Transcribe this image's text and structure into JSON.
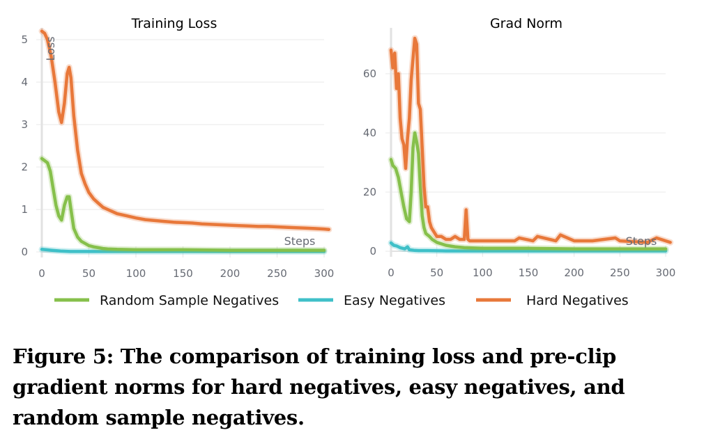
{
  "figure": {
    "caption": "Figure 5: The comparison of training loss and pre-clip gradient norms for hard negatives, easy negatives, and random sample negatives."
  },
  "legend": [
    {
      "label": "Random Sample Negatives",
      "color": "#86c04b"
    },
    {
      "label": "Easy Negatives",
      "color": "#3fc0c8"
    },
    {
      "label": "Hard Negatives",
      "color": "#e8783a"
    }
  ],
  "chart_data": [
    {
      "type": "line",
      "title": "Training Loss",
      "xlabel": "Steps",
      "ylabel": "Loss",
      "xlim": [
        0,
        305
      ],
      "ylim": [
        0,
        5.3
      ],
      "xticks": [
        0,
        50,
        100,
        150,
        200,
        250,
        300
      ],
      "yticks": [
        0,
        1,
        2,
        3,
        4,
        5
      ],
      "grid": true,
      "legend_position": "bottom",
      "series": [
        {
          "name": "Hard Negatives",
          "color": "#e8783a",
          "x": [
            0,
            3,
            6,
            10,
            14,
            18,
            21,
            24,
            27,
            29,
            31,
            34,
            38,
            42,
            46,
            50,
            55,
            60,
            65,
            70,
            80,
            90,
            100,
            110,
            120,
            130,
            140,
            150,
            160,
            170,
            180,
            190,
            200,
            210,
            220,
            230,
            240,
            250,
            260,
            270,
            280,
            290,
            300,
            305
          ],
          "values": [
            5.2,
            5.15,
            5.0,
            4.6,
            4.0,
            3.3,
            3.05,
            3.5,
            4.2,
            4.35,
            4.1,
            3.2,
            2.4,
            1.85,
            1.6,
            1.4,
            1.25,
            1.15,
            1.05,
            1.0,
            0.9,
            0.85,
            0.8,
            0.76,
            0.74,
            0.72,
            0.7,
            0.69,
            0.68,
            0.66,
            0.65,
            0.64,
            0.63,
            0.62,
            0.61,
            0.6,
            0.6,
            0.59,
            0.58,
            0.57,
            0.56,
            0.55,
            0.54,
            0.53
          ]
        },
        {
          "name": "Random Sample Negatives",
          "color": "#86c04b",
          "x": [
            0,
            3,
            6,
            9,
            12,
            15,
            18,
            21,
            24,
            27,
            29,
            31,
            34,
            38,
            42,
            46,
            50,
            55,
            60,
            65,
            70,
            80,
            100,
            150,
            200,
            250,
            300
          ],
          "values": [
            2.2,
            2.15,
            2.1,
            1.9,
            1.5,
            1.1,
            0.85,
            0.75,
            1.1,
            1.3,
            1.3,
            1.0,
            0.55,
            0.35,
            0.25,
            0.2,
            0.15,
            0.12,
            0.1,
            0.08,
            0.07,
            0.06,
            0.05,
            0.05,
            0.04,
            0.04,
            0.04
          ]
        },
        {
          "name": "Easy Negatives",
          "color": "#3fc0c8",
          "x": [
            0,
            5,
            10,
            20,
            30,
            50,
            100,
            200,
            300
          ],
          "values": [
            0.06,
            0.05,
            0.04,
            0.02,
            0.01,
            0.01,
            0.01,
            0.01,
            0.01
          ]
        }
      ]
    },
    {
      "type": "line",
      "title": "Grad Norm",
      "xlabel": "Steps",
      "ylabel": "",
      "xlim": [
        0,
        305
      ],
      "ylim": [
        0,
        76
      ],
      "xticks": [
        0,
        50,
        100,
        150,
        200,
        250,
        300
      ],
      "yticks": [
        0,
        20,
        40,
        60
      ],
      "grid": true,
      "legend_position": "bottom",
      "series": [
        {
          "name": "Hard Negatives",
          "color": "#e8783a",
          "x": [
            0,
            2,
            4,
            6,
            8,
            10,
            12,
            14,
            16,
            18,
            20,
            22,
            24,
            26,
            28,
            30,
            32,
            34,
            36,
            38,
            40,
            42,
            44,
            46,
            50,
            55,
            60,
            65,
            70,
            75,
            80,
            82,
            84,
            86,
            90,
            100,
            120,
            135,
            140,
            155,
            160,
            180,
            185,
            200,
            220,
            245,
            250,
            280,
            290,
            300,
            305
          ],
          "values": [
            68,
            62,
            67,
            55,
            60,
            45,
            38,
            36,
            28,
            38,
            45,
            58,
            65,
            72,
            70,
            50,
            48,
            35,
            22,
            15,
            15,
            10,
            8,
            7,
            5,
            5,
            4,
            4,
            5,
            4,
            4,
            14,
            4,
            3.5,
            3.5,
            3.5,
            3.5,
            3.5,
            4.5,
            3.5,
            5,
            3.5,
            5.5,
            3.5,
            3.5,
            4.5,
            3.5,
            3,
            4.5,
            3.5,
            3
          ]
        },
        {
          "name": "Random Sample Negatives",
          "color": "#86c04b",
          "x": [
            0,
            2,
            5,
            8,
            11,
            14,
            17,
            20,
            22,
            24,
            26,
            28,
            30,
            32,
            34,
            36,
            38,
            40,
            42,
            45,
            50,
            55,
            60,
            70,
            80,
            100,
            150,
            200,
            250,
            300
          ],
          "values": [
            31,
            29,
            28,
            25,
            20,
            15,
            11,
            10,
            20,
            35,
            40,
            37,
            33,
            22,
            12,
            8,
            6,
            5.5,
            5,
            4,
            3,
            2.5,
            2,
            1.5,
            1.2,
            1,
            1,
            0.8,
            0.8,
            0.8
          ]
        },
        {
          "name": "Easy Negatives",
          "color": "#3fc0c8",
          "x": [
            0,
            3,
            6,
            10,
            15,
            18,
            20,
            25,
            30,
            40,
            60,
            100,
            200,
            300
          ],
          "values": [
            2.8,
            2.0,
            1.8,
            1.2,
            0.8,
            1.5,
            0.5,
            0.3,
            0.2,
            0.2,
            0.1,
            0.1,
            0.1,
            0.1
          ]
        }
      ]
    }
  ]
}
